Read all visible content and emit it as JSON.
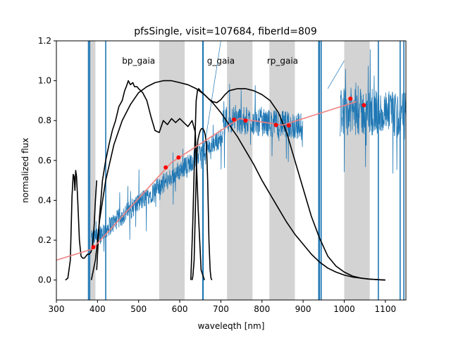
{
  "chart_data": {
    "type": "line",
    "title": "pfsSingle, visit=107684, fiberId=809",
    "xlabel": "waveleqth [nm]",
    "ylabel": "normalized flux",
    "xlim": [
      300,
      1150
    ],
    "ylim": [
      -0.1,
      1.2
    ],
    "xticks": [
      300,
      400,
      500,
      600,
      700,
      800,
      900,
      1000,
      1100
    ],
    "xtick_labels": [
      "300",
      "400",
      "500",
      "600",
      "700",
      "800",
      "900",
      "1000",
      "1100"
    ],
    "yticks": [
      0.0,
      0.2,
      0.4,
      0.6,
      0.8,
      1.0,
      1.2
    ],
    "ytick_labels": [
      "0.0",
      "0.2",
      "0.4",
      "0.6",
      "0.8",
      "1.0",
      "1.2"
    ],
    "grid": false,
    "colors": {
      "spectrum": "#1f77b4",
      "filter_curves": "#000000",
      "photometry_points": "#ff0000",
      "photometry_line": "#f08080",
      "masked_band": "#d3d3d3"
    },
    "band_labels": [
      {
        "text": "bp_gaia",
        "x": 500,
        "y": 1.1
      },
      {
        "text": "g_gaia",
        "x": 700,
        "y": 1.1
      },
      {
        "text": "rp_gaia",
        "x": 850,
        "y": 1.1
      }
    ],
    "shaded_regions": [
      [
        380,
        395
      ],
      [
        550,
        612
      ],
      [
        715,
        777
      ],
      [
        818,
        880
      ],
      [
        1000,
        1062
      ]
    ],
    "spectrum_mask_lines": [
      378,
      381,
      420,
      656,
      657,
      938,
      940,
      944,
      1083,
      1136,
      1145
    ],
    "spectrum_segments": [
      {
        "start": 385,
        "end": 705,
        "y_start": 0.2,
        "y_end": 0.72,
        "noise": 0.05
      },
      {
        "start": 705,
        "end": 900,
        "y_start": 0.81,
        "y_end": 0.77,
        "noise": 0.07
      },
      {
        "start": 990,
        "end": 1150,
        "y_start": 0.85,
        "y_end": 0.82,
        "noise": 0.12
      }
    ],
    "photometry_points": [
      {
        "x": 390,
        "y": 0.165
      },
      {
        "x": 566,
        "y": 0.565
      },
      {
        "x": 597,
        "y": 0.615
      },
      {
        "x": 732,
        "y": 0.805
      },
      {
        "x": 760,
        "y": 0.8
      },
      {
        "x": 834,
        "y": 0.778
      },
      {
        "x": 865,
        "y": 0.775
      },
      {
        "x": 1015,
        "y": 0.91
      },
      {
        "x": 1048,
        "y": 0.877
      }
    ],
    "photometry_fit": [
      {
        "x": 300,
        "y": 0.1
      },
      {
        "x": 387,
        "y": 0.155
      },
      {
        "x": 580,
        "y": 0.59
      },
      {
        "x": 745,
        "y": 0.81
      },
      {
        "x": 850,
        "y": 0.777
      },
      {
        "x": 1030,
        "y": 0.895
      }
    ],
    "series": [
      {
        "name": "uv_filter",
        "x": [
          322,
          328,
          334,
          338,
          341,
          343,
          345,
          347,
          349,
          352,
          356,
          360,
          364,
          368,
          372,
          376,
          380,
          384,
          388,
          392,
          395,
          398
        ],
        "y": [
          0.0,
          0.01,
          0.1,
          0.42,
          0.53,
          0.52,
          0.45,
          0.55,
          0.52,
          0.4,
          0.2,
          0.12,
          0.11,
          0.11,
          0.12,
          0.13,
          0.13,
          0.14,
          0.17,
          0.28,
          0.4,
          0.5
        ]
      },
      {
        "name": "bp_filter",
        "x": [
          398,
          405,
          412,
          420,
          428,
          436,
          444,
          452,
          460,
          466,
          470,
          475,
          480,
          486,
          490,
          496,
          500,
          510,
          520,
          530,
          540,
          550,
          560,
          570,
          580,
          590,
          600,
          610,
          620,
          630,
          638,
          645,
          652,
          660
        ],
        "y": [
          0.05,
          0.32,
          0.5,
          0.6,
          0.68,
          0.75,
          0.8,
          0.87,
          0.9,
          0.95,
          0.97,
          1.0,
          0.98,
          0.99,
          0.97,
          0.97,
          0.96,
          0.94,
          0.9,
          0.82,
          0.75,
          0.74,
          0.8,
          0.78,
          0.81,
          0.79,
          0.81,
          0.79,
          0.77,
          0.8,
          0.74,
          0.35,
          0.05,
          0.0
        ]
      },
      {
        "name": "g_filter",
        "x": [
          385,
          395,
          405,
          420,
          440,
          460,
          480,
          500,
          520,
          540,
          560,
          580,
          600,
          620,
          640,
          660,
          680,
          700,
          720,
          740,
          760,
          780,
          800,
          820,
          840,
          860,
          880,
          900,
          920,
          940,
          960,
          980,
          1000,
          1020,
          1040,
          1060,
          1080,
          1100
        ],
        "y": [
          0.0,
          0.1,
          0.3,
          0.5,
          0.68,
          0.8,
          0.88,
          0.94,
          0.97,
          0.99,
          1.0,
          1.0,
          0.99,
          0.98,
          0.96,
          0.93,
          0.89,
          0.84,
          0.78,
          0.72,
          0.65,
          0.58,
          0.5,
          0.43,
          0.36,
          0.29,
          0.23,
          0.18,
          0.13,
          0.09,
          0.06,
          0.04,
          0.025,
          0.015,
          0.01,
          0.005,
          0.002,
          0.0
        ]
      },
      {
        "name": "rp_filter",
        "x": [
          627,
          632,
          637,
          640,
          643,
          646,
          650,
          660,
          670,
          680,
          690,
          700,
          710,
          720,
          740,
          760,
          780,
          800,
          820,
          840,
          860,
          880,
          900,
          920,
          940,
          960,
          980,
          1000,
          1020,
          1040,
          1060,
          1080,
          1100
        ],
        "y": [
          0.0,
          0.3,
          0.7,
          0.9,
          0.95,
          0.96,
          0.95,
          0.93,
          0.91,
          0.895,
          0.89,
          0.905,
          0.93,
          0.95,
          0.96,
          0.96,
          0.95,
          0.93,
          0.9,
          0.84,
          0.74,
          0.6,
          0.46,
          0.32,
          0.21,
          0.12,
          0.07,
          0.04,
          0.02,
          0.01,
          0.005,
          0.002,
          0.0
        ]
      },
      {
        "name": "narrow_filter",
        "x": [
          630,
          632,
          635,
          638,
          641,
          644,
          647,
          650,
          653,
          656,
          659,
          662,
          665,
          668,
          671,
          674,
          676,
          678
        ],
        "y": [
          0.0,
          0.02,
          0.1,
          0.35,
          0.6,
          0.7,
          0.73,
          0.75,
          0.76,
          0.76,
          0.75,
          0.73,
          0.68,
          0.5,
          0.2,
          0.05,
          0.01,
          0.0
        ]
      }
    ]
  }
}
